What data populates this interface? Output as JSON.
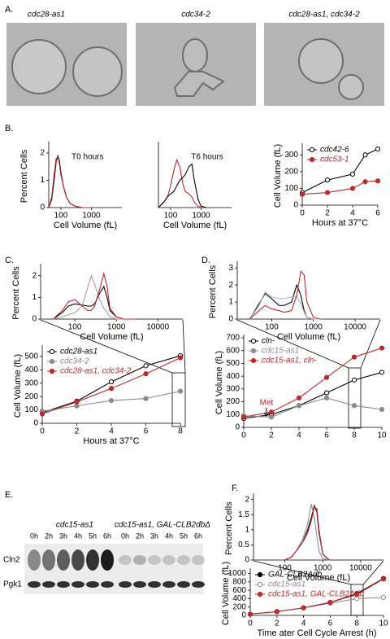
{
  "panel_labels": [
    "A.",
    "B.",
    "C.",
    "D.",
    "E.",
    "F."
  ],
  "panel_a": {
    "captions": [
      "cdc28-as1",
      "cdc34-2",
      "cdc28-as1, cdc34-2"
    ]
  },
  "panel_e": {
    "groups": [
      "cdc15-as1",
      "cdc15-as1, GAL-CLB2dbΔ"
    ],
    "lanes": [
      "0h",
      "2h",
      "3h",
      "4h",
      "5h",
      "6h",
      "0h",
      "2h",
      "3h",
      "4h",
      "5h",
      "6h"
    ],
    "rows": [
      "Cln2",
      "Pgk1"
    ]
  },
  "chart_data": [
    {
      "type": "line",
      "xscale": "log",
      "annotation": "T0 hours",
      "ylabel": "Percent Cells",
      "xlabel": "Cell Volume (fL)",
      "xlim": [
        40,
        10000
      ],
      "xticks": [
        100,
        1000
      ],
      "ylim": [
        0,
        2.3
      ],
      "yticks": [
        0,
        1,
        2
      ],
      "x": [
        40,
        50,
        60,
        70,
        80,
        90,
        100,
        120,
        150,
        200,
        300,
        500,
        1000
      ],
      "series": [
        {
          "color": "#000000",
          "values": [
            0,
            0.3,
            1.0,
            1.7,
            1.9,
            1.7,
            1.3,
            0.8,
            0.4,
            0.15,
            0.05,
            0,
            0
          ]
        },
        {
          "color": "#c0282d",
          "values": [
            0,
            0.4,
            1.2,
            1.8,
            1.85,
            1.6,
            1.2,
            0.8,
            0.4,
            0.15,
            0.05,
            0,
            0
          ]
        }
      ]
    },
    {
      "type": "line",
      "xscale": "log",
      "annotation": "T6 hours",
      "xlabel": "Cell Volume (fL)",
      "xlim": [
        40,
        10000
      ],
      "xticks": [
        100,
        1000
      ],
      "ylim": [
        0,
        2.3
      ],
      "x": [
        40,
        60,
        80,
        100,
        130,
        160,
        200,
        250,
        300,
        400,
        500,
        600,
        800,
        1000,
        1500
      ],
      "series": [
        {
          "color": "#c0282d",
          "values": [
            0,
            0.2,
            0.4,
            0.8,
            1.4,
            1.75,
            1.5,
            0.9,
            0.6,
            0.5,
            0.4,
            0.2,
            0.05,
            0,
            0
          ]
        },
        {
          "color": "#000000",
          "values": [
            0,
            0.2,
            0.4,
            0.5,
            0.6,
            0.8,
            1.0,
            1.1,
            1.2,
            1.5,
            1.6,
            1.0,
            0.3,
            0.05,
            0
          ]
        }
      ]
    },
    {
      "type": "line",
      "ylabel": "Cell Volume (fL)",
      "xlabel": "Hours at 37°C",
      "legend": "upper left",
      "xlim": [
        0,
        6
      ],
      "xticks": [
        0,
        2,
        4,
        6
      ],
      "ylim": [
        0,
        350
      ],
      "yticks": [
        0,
        100,
        200,
        300
      ],
      "x": [
        0,
        2,
        4,
        5,
        6
      ],
      "series": [
        {
          "name": "cdc42-6",
          "color": "#000000",
          "marker": "open",
          "values": [
            75,
            150,
            185,
            300,
            335
          ]
        },
        {
          "name": "cdc53-1",
          "color": "#c0282d",
          "marker": "filled",
          "values": [
            65,
            75,
            100,
            140,
            145
          ]
        }
      ]
    },
    {
      "type": "line",
      "xscale": "log",
      "ylabel": "Percent Cells",
      "xlabel": "Cell Volume (fL)",
      "xlim": [
        15,
        40000
      ],
      "xticks": [
        100,
        1000,
        10000
      ],
      "ylim": [
        0,
        2.4
      ],
      "yticks": [
        0,
        1,
        2
      ],
      "x": [
        30,
        50,
        70,
        100,
        150,
        200,
        250,
        300,
        400,
        500,
        600,
        700,
        1000,
        1500,
        3000
      ],
      "series": [
        {
          "color": "#000000",
          "values": [
            0,
            0.3,
            0.6,
            0.7,
            0.65,
            0.6,
            0.6,
            0.7,
            1.2,
            1.5,
            1.0,
            0.4,
            0.1,
            0,
            0
          ]
        },
        {
          "color": "#a0a0a0",
          "values": [
            0,
            0.1,
            0.2,
            0.3,
            0.6,
            1.4,
            2.0,
            1.6,
            0.9,
            0.5,
            0.3,
            0.1,
            0,
            0,
            0
          ]
        },
        {
          "color": "#c0282d",
          "values": [
            0,
            0.4,
            0.8,
            0.9,
            0.6,
            0.4,
            0.4,
            0.6,
            1.4,
            2.1,
            1.5,
            0.5,
            0.1,
            0,
            0
          ]
        }
      ]
    },
    {
      "type": "line",
      "ylabel": "Cell Volume (fL)",
      "xlabel": "Hours at 37°C",
      "legend": "upper left",
      "xlim": [
        0,
        8
      ],
      "xticks": [
        0,
        2,
        4,
        6,
        8
      ],
      "ylim": [
        0,
        560
      ],
      "yticks": [
        0,
        100,
        200,
        300,
        400,
        500
      ],
      "x": [
        0,
        2,
        4,
        6,
        8
      ],
      "series": [
        {
          "name": "cdc28-as1",
          "color": "#000000",
          "marker": "open",
          "values": [
            80,
            165,
            310,
            430,
            505
          ]
        },
        {
          "name": "cdc34-2",
          "color": "#8c8c8c",
          "marker": "filled",
          "values": [
            90,
            130,
            170,
            185,
            240
          ]
        },
        {
          "name": "cdc28-as1, cdc34-2",
          "color": "#c0282d",
          "marker": "filled",
          "values": [
            70,
            160,
            260,
            370,
            490
          ]
        }
      ]
    },
    {
      "type": "line",
      "xscale": "log",
      "ylabel": "Percent Cells",
      "xlabel": "Cell Volume (fL)",
      "xlim": [
        15,
        40000
      ],
      "xticks": [
        100,
        1000,
        10000
      ],
      "ylim": [
        0,
        3.2
      ],
      "yticks": [
        0,
        1,
        2,
        3
      ],
      "x": [
        30,
        50,
        70,
        100,
        150,
        200,
        300,
        400,
        500,
        600,
        700,
        1000,
        1500
      ],
      "series": [
        {
          "color": "#000000",
          "values": [
            0,
            0.9,
            1.5,
            1.2,
            0.8,
            0.8,
            1.0,
            2.0,
            1.4,
            0.5,
            0.1,
            0,
            0
          ]
        },
        {
          "color": "#a9b4c8",
          "values": [
            0,
            0.8,
            1.6,
            1.3,
            1.2,
            1.2,
            1.3,
            1.3,
            0.9,
            0.4,
            0.1,
            0,
            0
          ]
        },
        {
          "color": "#c0282d",
          "values": [
            0,
            0.5,
            0.8,
            0.6,
            0.5,
            0.4,
            0.5,
            1.4,
            2.8,
            2.6,
            1.0,
            0.1,
            0
          ]
        }
      ]
    },
    {
      "type": "line",
      "ylabel": "Cell Volume (fL)",
      "legend": "upper left",
      "annotation": "Met",
      "xlim": [
        0,
        10
      ],
      "xticks": [
        0,
        2,
        4,
        6,
        8,
        10
      ],
      "ylim": [
        0,
        700
      ],
      "yticks": [
        0,
        100,
        200,
        300,
        400,
        500,
        600,
        700
      ],
      "x": [
        0,
        2,
        4,
        6,
        8,
        10
      ],
      "series": [
        {
          "name": "cln-",
          "color": "#000000",
          "marker": "open",
          "values": [
            70,
            100,
            170,
            270,
            370,
            430
          ]
        },
        {
          "name": "cdc15-as1",
          "color": "#8c8c8c",
          "marker": "filled",
          "values": [
            90,
            80,
            170,
            230,
            170,
            140
          ]
        },
        {
          "name": "cdc15-as1, cln-",
          "color": "#c0282d",
          "marker": "filled",
          "values": [
            80,
            120,
            230,
            390,
            550,
            620
          ]
        }
      ]
    },
    {
      "type": "line",
      "xscale": "log",
      "ylabel": "Percent Cells",
      "xlabel": "Cell Volume (fL)",
      "xlim": [
        15,
        40000
      ],
      "xticks": [
        100,
        1000,
        10000
      ],
      "ylim": [
        0,
        2.1
      ],
      "yticks": [
        0,
        0.5,
        1,
        1.5,
        2
      ],
      "x": [
        100,
        150,
        200,
        300,
        400,
        500,
        600,
        700,
        800,
        1000,
        1500
      ],
      "series": [
        {
          "color": "#000000",
          "values": [
            0,
            0.1,
            0.3,
            0.6,
            1.0,
            1.4,
            1.8,
            1.6,
            0.9,
            0.2,
            0
          ]
        },
        {
          "color": "#8c8c8c",
          "values": [
            0,
            0.1,
            0.3,
            0.7,
            1.2,
            1.85,
            1.4,
            0.8,
            0.3,
            0.05,
            0
          ]
        },
        {
          "color": "#c0282d",
          "values": [
            0,
            0.1,
            0.3,
            0.6,
            0.9,
            1.3,
            1.75,
            1.7,
            1.0,
            0.2,
            0
          ]
        }
      ]
    },
    {
      "type": "line",
      "ylabel": "Cell Volume (fL)",
      "xlabel": "Time ater Cell Cycle Arrest (h)",
      "legend": "upper left",
      "xlim": [
        0,
        10
      ],
      "xticks": [
        0,
        2,
        4,
        6,
        8,
        10
      ],
      "ylim": [
        0,
        1050
      ],
      "yticks": [
        0,
        200,
        400,
        600,
        800,
        1000
      ],
      "x": [
        0,
        2,
        4,
        6,
        8,
        10
      ],
      "series": [
        {
          "name": "GAL-CLB2Δdb",
          "color": "#000000",
          "marker": "filled",
          "values": [
            30,
            90,
            180,
            310,
            520,
            880
          ]
        },
        {
          "name": "cdc15-as1",
          "color": "#8c8c8c",
          "marker": "open",
          "values": [
            30,
            90,
            180,
            290,
            400,
            430
          ]
        },
        {
          "name": "cdc15-as1, GAL-CLB2Δdb",
          "color": "#c0282d",
          "marker": "filled",
          "values": [
            30,
            90,
            180,
            310,
            500,
            870
          ]
        }
      ]
    }
  ]
}
